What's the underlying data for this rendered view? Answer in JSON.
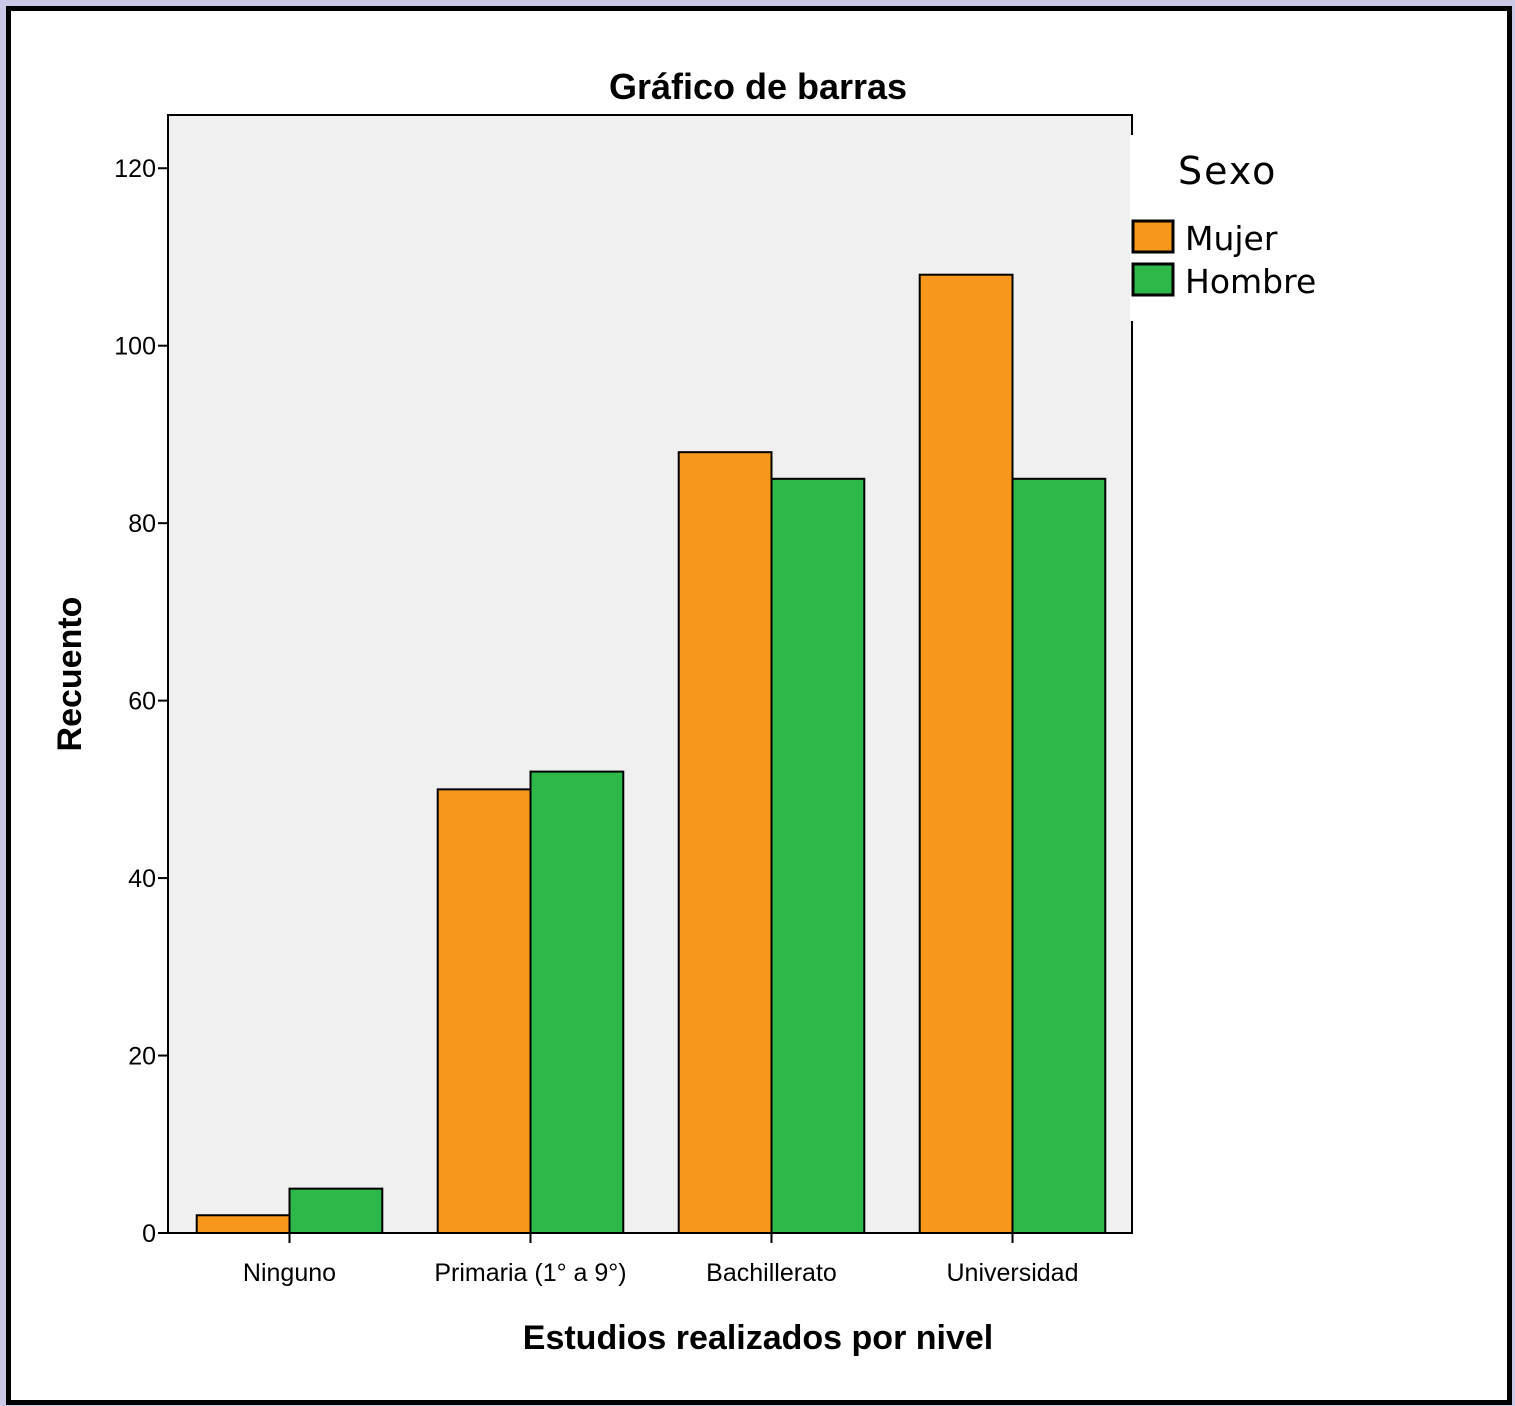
{
  "chart_data": {
    "type": "bar",
    "title": "Gráfico de barras",
    "xlabel": "Estudios realizados por nivel",
    "ylabel": "Recuento",
    "categories": [
      "Ninguno",
      "Primaria (1° a 9°)",
      "Bachillerato",
      "Universidad"
    ],
    "series": [
      {
        "name": "Mujer",
        "color": "#f7981d",
        "values": [
          2,
          50,
          88,
          108
        ]
      },
      {
        "name": "Hombre",
        "color": "#2fb84a",
        "values": [
          5,
          52,
          85,
          85
        ]
      }
    ],
    "ylim": [
      0,
      126
    ],
    "yticks": [
      0,
      20,
      40,
      60,
      80,
      100,
      120
    ],
    "legend": {
      "title": "Sexo",
      "position": "right"
    },
    "plot_background": "#f0f0f0",
    "grid": false
  }
}
